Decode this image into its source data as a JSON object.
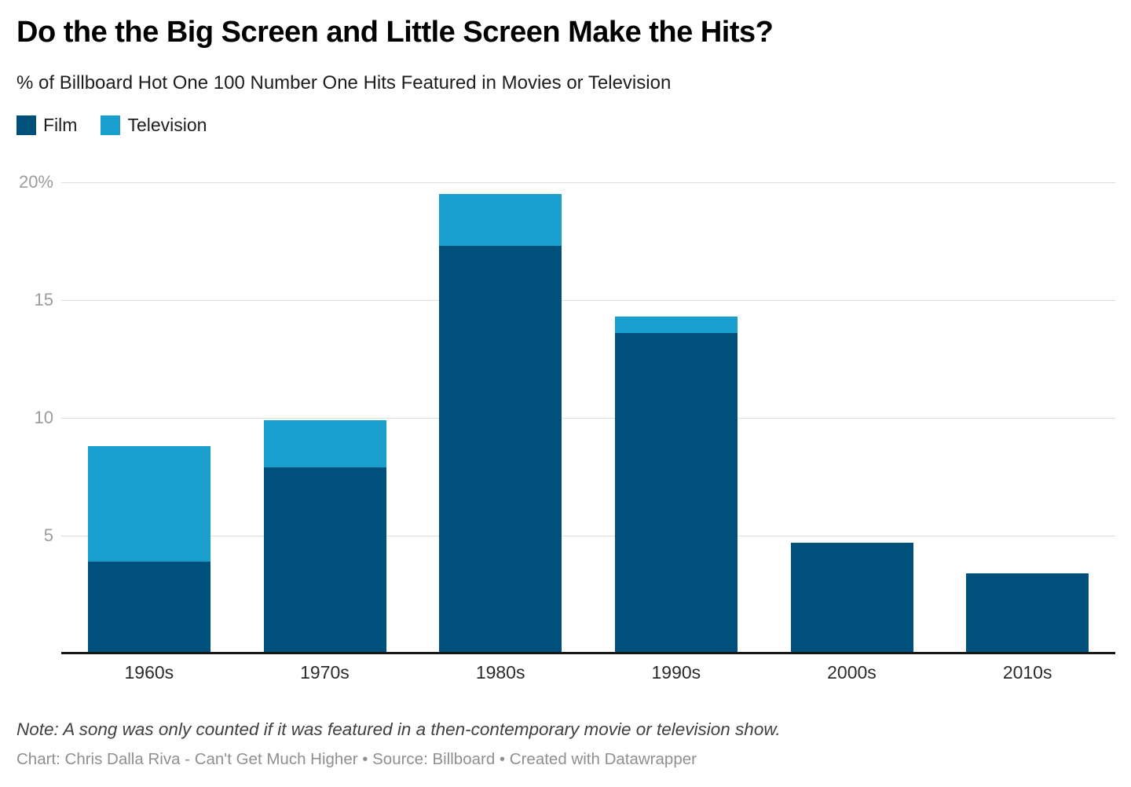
{
  "header": {
    "title": "Do the the Big Screen and Little Screen Make the Hits?",
    "subtitle": "% of Billboard Hot One 100 Number One Hits Featured in Movies or Television"
  },
  "chart_data": {
    "type": "bar",
    "stacked": true,
    "title": "Do the the Big Screen and Little Screen Make the Hits?",
    "subtitle": "% of Billboard Hot One 100 Number One Hits Featured in Movies or Television",
    "categories": [
      "1960s",
      "1970s",
      "1980s",
      "1990s",
      "2000s",
      "2010s"
    ],
    "series": [
      {
        "name": "Film",
        "color": "#00507c",
        "values": [
          3.9,
          7.9,
          17.3,
          13.6,
          4.7,
          3.4
        ]
      },
      {
        "name": "Television",
        "color": "#1aa0ce",
        "values": [
          4.9,
          2.0,
          2.2,
          0.7,
          0,
          0
        ]
      }
    ],
    "totals": [
      8.8,
      9.9,
      19.5,
      14.3,
      4.7,
      3.4
    ],
    "xlabel": "",
    "ylabel": "",
    "ylim": [
      0,
      20
    ],
    "yticks": [
      {
        "value": 5,
        "label": "5"
      },
      {
        "value": 10,
        "label": "10"
      },
      {
        "value": 15,
        "label": "15"
      },
      {
        "value": 20,
        "label": "20%"
      }
    ],
    "grid": "horizontal",
    "legend_position": "top-left"
  },
  "footer": {
    "note": "Note: A song was only counted if it was featured in a then-contemporary movie or television show.",
    "credit": "Chart: Chris Dalla Riva - Can't Get Much Higher • Source: Billboard • Created with Datawrapper"
  }
}
